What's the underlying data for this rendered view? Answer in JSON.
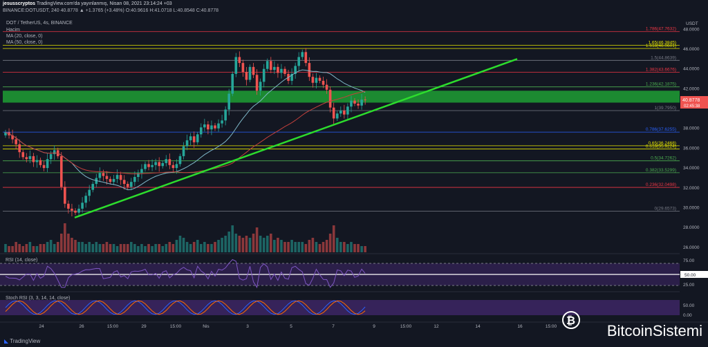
{
  "header": {
    "author": "jesusscryptos",
    "published": "TradingView.com'da yayınlanmış, Nisan 08, 2021 23:14:24 +03",
    "ohlc_line": "BINANCE:DOTUSDT, 240  40.8778 ▲ +1.3765 (+3.48%)  O:40.9616 H:41.0718 L:40.8548 C:40.8778"
  },
  "legend": {
    "symbol": "DOT / TetherUS, 4s, BINANCE",
    "volume": "Hacim",
    "ma20": "MA (20, close, 0)",
    "ma50": "MA (50, close, 0)"
  },
  "rsi_label": "RSI (14, close)",
  "stoch_label": "Stoch RSI (3, 3, 14, 14, close)",
  "watermark": "BitcoinSistemi",
  "tv_brand": "TradingView",
  "colors": {
    "bg": "#131722",
    "up": "#26a69a",
    "down": "#ef5350",
    "trend": "#2ddc2d",
    "zone": "#1f9f34",
    "ma20": "#7fb8c9",
    "ma50": "#c4403c"
  },
  "chart_data": {
    "type": "candlestick",
    "title": "DOT / TetherUS, 4s, BINANCE",
    "y_axis_label": "USDT",
    "ylim": [
      25.5,
      49.0
    ],
    "y_ticks": [
      "48.0000",
      "46.0000",
      "44.0000",
      "42.0000",
      "38.0000",
      "36.0000",
      "34.0000",
      "32.0000",
      "30.0000",
      "28.0000",
      "26.0000"
    ],
    "x_ticks": [
      "24",
      "26",
      "15:00",
      "29",
      "15:00",
      "Nis",
      "3",
      "5",
      "7",
      "9",
      "15:00",
      "12",
      "14",
      "16",
      "15:00"
    ],
    "current_price": "40.8778",
    "countdown": "02:45:38",
    "fib_levels": [
      {
        "label": "1.786(47.7632)",
        "value": 47.7632,
        "color": "#f23645"
      },
      {
        "label": "1.65(46.3845)",
        "value": 46.3845,
        "color": "#e6e600"
      },
      {
        "label": "1.618(46.0601)",
        "value": 46.0601,
        "color": "#e6e600"
      },
      {
        "label": "1.5(44.8639)",
        "value": 44.8639,
        "color": "#787b86"
      },
      {
        "label": "1.382(43.6676)",
        "value": 43.6676,
        "color": "#f23645"
      },
      {
        "label": "1.236(42.1875)",
        "value": 42.1875,
        "color": "#4caf50"
      },
      {
        "label": "1(39.7950)",
        "value": 39.795,
        "color": "#787b86"
      },
      {
        "label": "0.786(37.6255)",
        "value": 37.6255,
        "color": "#2962ff"
      },
      {
        "label": "0.65(36.2468)",
        "value": 36.2468,
        "color": "#e6e600"
      },
      {
        "label": "0.618(35.9224)",
        "value": 35.9224,
        "color": "#e6e600"
      },
      {
        "label": "0.5(34.7262)",
        "value": 34.7262,
        "color": "#4caf50"
      },
      {
        "label": "0.382(33.5299)",
        "value": 33.5299,
        "color": "#4caf50"
      },
      {
        "label": "0.236(32.0498)",
        "value": 32.0498,
        "color": "#f23645"
      },
      {
        "label": "0(29.6573)",
        "value": 29.6573,
        "color": "#787b86"
      }
    ],
    "support_zone": [
      40.6,
      41.8
    ],
    "close_series": [
      37.6,
      37.3,
      36.9,
      36.4,
      35.6,
      35.1,
      34.9,
      35.2,
      34.6,
      34.8,
      34.3,
      34.0,
      34.9,
      35.4,
      35.8,
      35.2,
      32.1,
      30.4,
      29.9,
      29.7,
      29.5,
      29.9,
      30.5,
      31.2,
      31.8,
      32.4,
      33.0,
      33.5,
      33.2,
      32.9,
      32.6,
      32.9,
      33.3,
      32.8,
      32.4,
      32.1,
      32.6,
      33.1,
      33.5,
      33.9,
      34.4,
      34.1,
      34.3,
      34.6,
      34.2,
      34.5,
      34.9,
      34.3,
      34.0,
      34.4,
      35.2,
      36.2,
      36.8,
      37.2,
      36.6,
      37.4,
      38.1,
      38.4,
      37.9,
      38.3,
      38.0,
      38.5,
      38.8,
      39.9,
      41.5,
      43.5,
      45.2,
      44.6,
      43.7,
      42.9,
      44.2,
      43.4,
      41.8,
      42.7,
      44.0,
      44.8,
      43.9,
      44.2,
      43.6,
      44.0,
      43.5,
      42.8,
      43.5,
      44.3,
      45.2,
      45.7,
      44.6,
      43.2,
      42.6,
      43.1,
      42.8,
      42.4,
      41.9,
      40.1,
      39.0,
      39.5,
      39.8,
      39.4,
      40.2,
      40.8,
      40.5,
      40.3,
      40.9,
      40.88
    ],
    "volume_series": [
      4,
      3,
      3,
      5,
      4,
      3,
      4,
      5,
      3,
      3,
      4,
      4,
      5,
      6,
      4,
      5,
      9,
      14,
      9,
      7,
      6,
      5,
      5,
      4,
      5,
      4,
      5,
      4,
      4,
      5,
      4,
      4,
      3,
      4,
      4,
      4,
      5,
      4,
      3,
      4,
      3,
      4,
      3,
      4,
      4,
      3,
      4,
      5,
      4,
      6,
      8,
      7,
      5,
      4,
      5,
      6,
      4,
      5,
      4,
      4,
      5,
      6,
      7,
      8,
      10,
      13,
      9,
      8,
      7,
      8,
      7,
      9,
      12,
      8,
      7,
      8,
      9,
      6,
      7,
      6,
      5,
      5,
      6,
      5,
      5,
      5,
      4,
      6,
      7,
      5,
      4,
      5,
      6,
      9,
      13,
      7,
      5,
      5,
      4,
      5,
      4,
      4,
      3,
      3
    ],
    "trendline": {
      "from": {
        "x": "25 Mart",
        "y": 29.0
      },
      "to": {
        "x": "15 Nisan",
        "y": 45.0
      }
    },
    "rsi": {
      "levels": [
        70,
        50,
        30
      ],
      "mid_label": "50.00",
      "top_label": "75.00",
      "bottom_label": "25.00"
    },
    "stoch_rsi": {
      "top_label": "50.00",
      "bottom_label": "0.00"
    }
  }
}
